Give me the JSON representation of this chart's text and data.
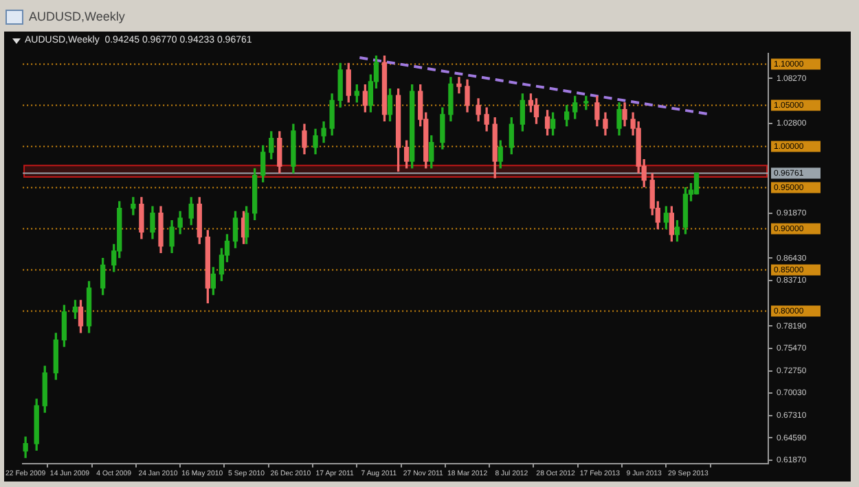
{
  "chart_data": {
    "type": "candlestick",
    "title": "AUDUSD,Weekly",
    "subtitle": "AUDUSD,Weekly  0.94245 0.96770 0.94233 0.96761",
    "x": [
      "2009-02-22",
      "2009-03-22",
      "2009-04-12",
      "2009-05-10",
      "2009-05-31",
      "2009-06-28",
      "2009-07-12",
      "2009-08-02",
      "2009-09-06",
      "2009-10-04",
      "2009-10-18",
      "2009-11-22",
      "2009-12-13",
      "2010-01-10",
      "2010-01-31",
      "2010-02-28",
      "2010-03-21",
      "2010-04-18",
      "2010-05-09",
      "2010-05-30",
      "2010-06-13",
      "2010-07-04",
      "2010-07-18",
      "2010-08-08",
      "2010-08-29",
      "2010-09-05",
      "2010-09-26",
      "2010-10-17",
      "2010-11-07",
      "2010-11-28",
      "2011-01-02",
      "2011-01-30",
      "2011-02-27",
      "2011-03-20",
      "2011-04-10",
      "2011-05-01",
      "2011-05-22",
      "2011-06-12",
      "2011-07-03",
      "2011-07-17",
      "2011-07-31",
      "2011-08-21",
      "2011-09-04",
      "2011-09-25",
      "2011-10-16",
      "2011-10-30",
      "2011-11-20",
      "2011-12-04",
      "2011-12-18",
      "2012-01-15",
      "2012-02-05",
      "2012-02-26",
      "2012-03-18",
      "2012-04-15",
      "2012-05-06",
      "2012-05-27",
      "2012-06-10",
      "2012-07-08",
      "2012-08-05",
      "2012-08-26",
      "2012-09-09",
      "2012-10-07",
      "2012-10-21",
      "2012-11-25",
      "2012-12-16",
      "2013-01-13",
      "2013-02-10",
      "2013-03-03",
      "2013-04-07",
      "2013-04-21",
      "2013-05-12",
      "2013-05-26",
      "2013-06-09",
      "2013-06-30",
      "2013-07-14",
      "2013-08-04",
      "2013-08-18",
      "2013-09-01",
      "2013-09-22",
      "2013-10-06",
      "2013-10-20"
    ],
    "ohlc": [
      [
        0.63,
        0.647,
        0.622,
        0.639
      ],
      [
        0.639,
        0.693,
        0.631,
        0.685
      ],
      [
        0.685,
        0.733,
        0.677,
        0.725
      ],
      [
        0.725,
        0.773,
        0.717,
        0.765
      ],
      [
        0.765,
        0.807,
        0.757,
        0.799
      ],
      [
        0.799,
        0.813,
        0.791,
        0.805
      ],
      [
        0.805,
        0.813,
        0.774,
        0.782
      ],
      [
        0.782,
        0.836,
        0.774,
        0.828
      ],
      [
        0.828,
        0.864,
        0.82,
        0.856
      ],
      [
        0.856,
        0.881,
        0.848,
        0.873
      ],
      [
        0.873,
        0.933,
        0.865,
        0.925
      ],
      [
        0.925,
        0.938,
        0.917,
        0.93
      ],
      [
        0.93,
        0.938,
        0.888,
        0.896
      ],
      [
        0.896,
        0.927,
        0.888,
        0.919
      ],
      [
        0.919,
        0.927,
        0.871,
        0.879
      ],
      [
        0.879,
        0.91,
        0.871,
        0.902
      ],
      [
        0.902,
        0.921,
        0.894,
        0.913
      ],
      [
        0.913,
        0.938,
        0.905,
        0.93
      ],
      [
        0.93,
        0.938,
        0.882,
        0.89
      ],
      [
        0.89,
        0.898,
        0.81,
        0.828
      ],
      [
        0.828,
        0.853,
        0.82,
        0.845
      ],
      [
        0.845,
        0.876,
        0.837,
        0.868
      ],
      [
        0.868,
        0.893,
        0.86,
        0.885
      ],
      [
        0.885,
        0.921,
        0.877,
        0.913
      ],
      [
        0.913,
        0.921,
        0.882,
        0.89
      ],
      [
        0.89,
        0.927,
        0.882,
        0.919
      ],
      [
        0.919,
        0.973,
        0.911,
        0.965
      ],
      [
        0.965,
        1.001,
        0.957,
        0.993
      ],
      [
        0.993,
        1.018,
        0.985,
        1.01
      ],
      [
        1.01,
        1.018,
        0.968,
        0.976
      ],
      [
        0.976,
        1.027,
        0.968,
        1.019
      ],
      [
        1.019,
        1.027,
        0.991,
        0.999
      ],
      [
        0.999,
        1.021,
        0.991,
        1.013
      ],
      [
        1.013,
        1.03,
        1.005,
        1.022
      ],
      [
        1.022,
        1.064,
        1.014,
        1.056
      ],
      [
        1.056,
        1.101,
        1.048,
        1.093
      ],
      [
        1.093,
        1.101,
        1.054,
        1.062
      ],
      [
        1.062,
        1.075,
        1.054,
        1.067
      ],
      [
        1.067,
        1.075,
        1.042,
        1.05
      ],
      [
        1.05,
        1.087,
        1.042,
        1.079
      ],
      [
        1.079,
        1.11,
        1.071,
        1.102
      ],
      [
        1.102,
        1.11,
        1.031,
        1.039
      ],
      [
        1.039,
        1.07,
        1.031,
        1.062
      ],
      [
        1.062,
        1.07,
        0.97,
        0.999
      ],
      [
        0.999,
        1.007,
        0.974,
        0.982
      ],
      [
        0.982,
        1.075,
        0.974,
        1.067
      ],
      [
        1.067,
        1.075,
        1.025,
        1.033
      ],
      [
        1.033,
        1.041,
        0.974,
        0.982
      ],
      [
        0.982,
        1.013,
        0.974,
        1.005
      ],
      [
        1.005,
        1.047,
        0.997,
        1.039
      ],
      [
        1.039,
        1.084,
        1.031,
        1.076
      ],
      [
        1.076,
        1.084,
        1.065,
        1.073
      ],
      [
        1.073,
        1.081,
        1.042,
        1.05
      ],
      [
        1.05,
        1.058,
        1.031,
        1.039
      ],
      [
        1.039,
        1.047,
        1.019,
        1.027
      ],
      [
        1.027,
        1.035,
        0.962,
        0.982
      ],
      [
        0.982,
        1.007,
        0.974,
        0.999
      ],
      [
        0.999,
        1.035,
        0.991,
        1.027
      ],
      [
        1.027,
        1.064,
        1.019,
        1.056
      ],
      [
        1.056,
        1.064,
        1.042,
        1.05
      ],
      [
        1.05,
        1.058,
        1.028,
        1.036
      ],
      [
        1.036,
        1.044,
        1.014,
        1.022
      ],
      [
        1.022,
        1.041,
        1.014,
        1.033
      ],
      [
        1.033,
        1.05,
        1.025,
        1.042
      ],
      [
        1.042,
        1.061,
        1.034,
        1.053
      ],
      [
        1.053,
        1.061,
        1.045,
        1.053
      ],
      [
        1.053,
        1.061,
        1.025,
        1.033
      ],
      [
        1.033,
        1.041,
        1.014,
        1.022
      ],
      [
        1.022,
        1.053,
        1.014,
        1.045
      ],
      [
        1.045,
        1.053,
        1.025,
        1.033
      ],
      [
        1.033,
        1.041,
        1.014,
        1.022
      ],
      [
        1.022,
        1.03,
        0.968,
        0.976
      ],
      [
        0.976,
        0.984,
        0.951,
        0.959
      ],
      [
        0.959,
        0.967,
        0.917,
        0.925
      ],
      [
        0.925,
        0.933,
        0.9,
        0.908
      ],
      [
        0.908,
        0.927,
        0.9,
        0.919
      ],
      [
        0.919,
        0.927,
        0.885,
        0.893
      ],
      [
        0.893,
        0.91,
        0.885,
        0.902
      ],
      [
        0.902,
        0.95,
        0.894,
        0.942
      ],
      [
        0.942,
        0.955,
        0.934,
        0.947
      ],
      [
        0.94245,
        0.9677,
        0.94233,
        0.96761
      ]
    ],
    "colors": [
      "#1fae1f",
      "#1fae1f",
      "#1fae1f",
      "#1fae1f",
      "#1fae1f",
      "#1fae1f",
      "#f26b6b",
      "#1fae1f",
      "#1fae1f",
      "#1fae1f",
      "#1fae1f",
      "#1fae1f",
      "#f26b6b",
      "#1fae1f",
      "#f26b6b",
      "#1fae1f",
      "#1fae1f",
      "#1fae1f",
      "#f26b6b",
      "#f26b6b",
      "#1fae1f",
      "#1fae1f",
      "#1fae1f",
      "#1fae1f",
      "#f26b6b",
      "#1fae1f",
      "#1fae1f",
      "#1fae1f",
      "#1fae1f",
      "#f26b6b",
      "#1fae1f",
      "#f26b6b",
      "#1fae1f",
      "#1fae1f",
      "#1fae1f",
      "#1fae1f",
      "#f26b6b",
      "#1fae1f",
      "#f26b6b",
      "#1fae1f",
      "#1fae1f",
      "#f26b6b",
      "#1fae1f",
      "#f26b6b",
      "#f26b6b",
      "#1fae1f",
      "#f26b6b",
      "#f26b6b",
      "#1fae1f",
      "#1fae1f",
      "#1fae1f",
      "#f26b6b",
      "#f26b6b",
      "#f26b6b",
      "#f26b6b",
      "#f26b6b",
      "#1fae1f",
      "#1fae1f",
      "#1fae1f",
      "#f26b6b",
      "#f26b6b",
      "#f26b6b",
      "#1fae1f",
      "#1fae1f",
      "#1fae1f",
      "#1fae1f",
      "#f26b6b",
      "#f26b6b",
      "#1fae1f",
      "#f26b6b",
      "#f26b6b",
      "#f26b6b",
      "#f26b6b",
      "#f26b6b",
      "#f26b6b",
      "#1fae1f",
      "#f26b6b",
      "#1fae1f",
      "#1fae1f",
      "#1fae1f",
      "#1fae1f"
    ],
    "series": [
      {
        "type": "line",
        "x": [
          "2011-06-19",
          "2013-11-24"
        ],
        "values": [
          1.108,
          1.039
        ],
        "color": "#a07ae0",
        "line_style": "dashed"
      }
    ],
    "xlim": [
      "2009-02-15",
      "2014-04-20"
    ],
    "xticks": [
      {
        "value": "2009-02-22",
        "label": "22 Feb 2009"
      },
      {
        "value": "2009-06-14",
        "label": "14 Jun 2009"
      },
      {
        "value": "2009-10-04",
        "label": "4 Oct 2009"
      },
      {
        "value": "2010-01-24",
        "label": "24 Jan 2010"
      },
      {
        "value": "2010-05-16",
        "label": "16 May 2010"
      },
      {
        "value": "2010-09-05",
        "label": "5 Sep 2010"
      },
      {
        "value": "2010-12-26",
        "label": "26 Dec 2010"
      },
      {
        "value": "2011-04-17",
        "label": "17 Apr 2011"
      },
      {
        "value": "2011-08-07",
        "label": "7 Aug 2011"
      },
      {
        "value": "2011-11-27",
        "label": "27 Nov 2011"
      },
      {
        "value": "2012-03-18",
        "label": "18 Mar 2012"
      },
      {
        "value": "2012-07-08",
        "label": "8 Jul 2012"
      },
      {
        "value": "2012-10-28",
        "label": "28 Oct 2012"
      },
      {
        "value": "2013-02-17",
        "label": "17 Feb 2013"
      },
      {
        "value": "2013-06-09",
        "label": "9 Jun 2013"
      },
      {
        "value": "2013-09-29",
        "label": "29 Sep 2013"
      }
    ],
    "ylim": [
      0.615,
      1.113
    ],
    "yticks": [
      {
        "value": 0.6187,
        "label": "0.61870"
      },
      {
        "value": 0.6459,
        "label": "0.64590"
      },
      {
        "value": 0.6731,
        "label": "0.67310"
      },
      {
        "value": 0.7003,
        "label": "0.70030"
      },
      {
        "value": 0.7275,
        "label": "0.72750"
      },
      {
        "value": 0.7547,
        "label": "0.75470"
      },
      {
        "value": 0.7819,
        "label": "0.78190"
      },
      {
        "value": 0.8371,
        "label": "0.83710"
      },
      {
        "value": 0.8643,
        "label": "0.86430"
      },
      {
        "value": 0.9187,
        "label": "0.91870"
      },
      {
        "value": 1.028,
        "label": "1.02800"
      },
      {
        "value": 1.0827,
        "label": "1.08270"
      }
    ],
    "ref_lines": [
      {
        "axis": "y",
        "value": 1.1,
        "label": "1.10000",
        "color": "#d08a10",
        "line_style": "dotted"
      },
      {
        "axis": "y",
        "value": 1.05,
        "label": "1.05000",
        "color": "#d08a10",
        "line_style": "dotted"
      },
      {
        "axis": "y",
        "value": 1.0,
        "label": "1.00000",
        "color": "#d08a10",
        "line_style": "dotted"
      },
      {
        "axis": "y",
        "value": 0.95,
        "label": "0.95000",
        "color": "#d08a10",
        "line_style": "dotted"
      },
      {
        "axis": "y",
        "value": 0.9,
        "label": "0.90000",
        "color": "#d08a10",
        "line_style": "dotted"
      },
      {
        "axis": "y",
        "value": 0.85,
        "label": "0.85000",
        "color": "#d08a10",
        "line_style": "dotted"
      },
      {
        "axis": "y",
        "value": 0.8,
        "label": "0.80000",
        "color": "#d08a10",
        "line_style": "dotted"
      },
      {
        "axis": "y",
        "value": 0.96761,
        "label": "0.96761",
        "color": "#9aa4ac",
        "line_style": "solid"
      }
    ],
    "bands": [
      {
        "axis": "y",
        "from": 0.963,
        "to": 0.977,
        "color": "#c01818"
      }
    ],
    "grid": false,
    "legend": false
  }
}
